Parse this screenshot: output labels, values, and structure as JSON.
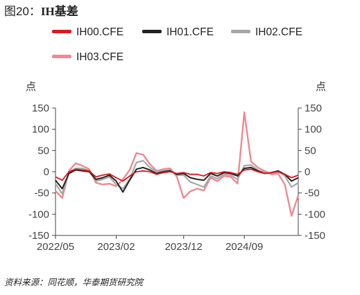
{
  "figure": {
    "label": "图20：",
    "title_prefix": "IH",
    "title_suffix": "基差"
  },
  "source": "资料来源：同花顺，华泰期货研究院",
  "chart_data": {
    "type": "line",
    "ylabel_left": "点",
    "ylabel_right": "点",
    "ylim": [
      -150,
      150
    ],
    "yticks": [
      -150,
      -100,
      -50,
      0,
      50,
      100,
      150
    ],
    "x_range": [
      "2022-05",
      "2025-05"
    ],
    "x_ticks": [
      {
        "x": "2022-05",
        "label": "2022/05"
      },
      {
        "x": "2023-02",
        "label": "2023/02"
      },
      {
        "x": "2023-12",
        "label": "2023/12"
      },
      {
        "x": "2024-09",
        "label": "2024/09"
      }
    ],
    "legend_position": "top",
    "series": [
      {
        "name": "IH00.CFE",
        "color": "#e1151c",
        "x": [
          "2022-05",
          "2022-06",
          "2022-07",
          "2022-08",
          "2022-09",
          "2022-10",
          "2022-11",
          "2022-12",
          "2023-01",
          "2023-02",
          "2023-03",
          "2023-04",
          "2023-05",
          "2023-06",
          "2023-07",
          "2023-08",
          "2023-09",
          "2023-10",
          "2023-11",
          "2023-12",
          "2024-01",
          "2024-02",
          "2024-03",
          "2024-04",
          "2024-05",
          "2024-06",
          "2024-07",
          "2024-08",
          "2024-09",
          "2024-10",
          "2024-11",
          "2024-12",
          "2025-01",
          "2025-02",
          "2025-03",
          "2025-04",
          "2025-05"
        ],
        "values": [
          -12,
          -20,
          0,
          6,
          4,
          2,
          -12,
          -8,
          -5,
          -14,
          -22,
          -10,
          0,
          2,
          0,
          -6,
          -2,
          0,
          -4,
          -2,
          -6,
          -6,
          -10,
          -2,
          -4,
          0,
          -2,
          -6,
          4,
          6,
          0,
          -4,
          -2,
          0,
          -6,
          -14,
          -8
        ]
      },
      {
        "name": "IH01.CFE",
        "color": "#222222",
        "x": [
          "2022-05",
          "2022-06",
          "2022-07",
          "2022-08",
          "2022-09",
          "2022-10",
          "2022-11",
          "2022-12",
          "2023-01",
          "2023-02",
          "2023-03",
          "2023-04",
          "2023-05",
          "2023-06",
          "2023-07",
          "2023-08",
          "2023-09",
          "2023-10",
          "2023-11",
          "2023-12",
          "2024-01",
          "2024-02",
          "2024-03",
          "2024-04",
          "2024-05",
          "2024-06",
          "2024-07",
          "2024-08",
          "2024-09",
          "2024-10",
          "2024-11",
          "2024-12",
          "2025-01",
          "2025-02",
          "2025-03",
          "2025-04",
          "2025-05"
        ],
        "values": [
          -20,
          -40,
          -4,
          4,
          2,
          0,
          -18,
          -14,
          -8,
          -22,
          -48,
          -20,
          6,
          10,
          4,
          -4,
          0,
          2,
          -6,
          -4,
          -14,
          -18,
          -20,
          -4,
          -10,
          -2,
          -4,
          -10,
          8,
          10,
          2,
          -4,
          -2,
          2,
          -6,
          -22,
          -14
        ]
      },
      {
        "name": "IH02.CFE",
        "color": "#a6a6a6",
        "x": [
          "2022-05",
          "2022-06",
          "2022-07",
          "2022-08",
          "2022-09",
          "2022-10",
          "2022-11",
          "2022-12",
          "2023-01",
          "2023-02",
          "2023-03",
          "2023-04",
          "2023-05",
          "2023-06",
          "2023-07",
          "2023-08",
          "2023-09",
          "2023-10",
          "2023-11",
          "2023-12",
          "2024-01",
          "2024-02",
          "2024-03",
          "2024-04",
          "2024-05",
          "2024-06",
          "2024-07",
          "2024-08",
          "2024-09",
          "2024-10",
          "2024-11",
          "2024-12",
          "2025-01",
          "2025-02",
          "2025-03",
          "2025-04",
          "2025-05"
        ],
        "values": [
          -28,
          -52,
          -2,
          8,
          8,
          2,
          -22,
          -18,
          -12,
          -30,
          -40,
          -18,
          22,
          26,
          10,
          0,
          2,
          4,
          -8,
          -8,
          -24,
          -30,
          -36,
          -10,
          -16,
          -6,
          -8,
          -18,
          14,
          16,
          4,
          -2,
          -4,
          2,
          -10,
          -36,
          -26
        ]
      },
      {
        "name": "IH03.CFE",
        "color": "#f08890",
        "x": [
          "2022-05",
          "2022-06",
          "2022-07",
          "2022-08",
          "2022-09",
          "2022-10",
          "2022-11",
          "2022-12",
          "2023-01",
          "2023-02",
          "2023-03",
          "2023-04",
          "2023-05",
          "2023-06",
          "2023-07",
          "2023-08",
          "2023-09",
          "2023-10",
          "2023-11",
          "2023-12",
          "2024-01",
          "2024-02",
          "2024-03",
          "2024-04",
          "2024-05",
          "2024-06",
          "2024-07",
          "2024-08",
          "2024-09",
          "2024-10",
          "2024-11",
          "2024-12",
          "2025-01",
          "2025-02",
          "2025-03",
          "2025-04",
          "2025-05"
        ],
        "values": [
          -45,
          -62,
          2,
          20,
          14,
          6,
          -26,
          -30,
          -28,
          -34,
          -18,
          4,
          44,
          40,
          18,
          2,
          6,
          8,
          -12,
          -62,
          -46,
          -40,
          -44,
          -14,
          -22,
          -10,
          -12,
          -28,
          140,
          24,
          10,
          2,
          -6,
          -4,
          -30,
          -104,
          -56
        ]
      }
    ]
  }
}
